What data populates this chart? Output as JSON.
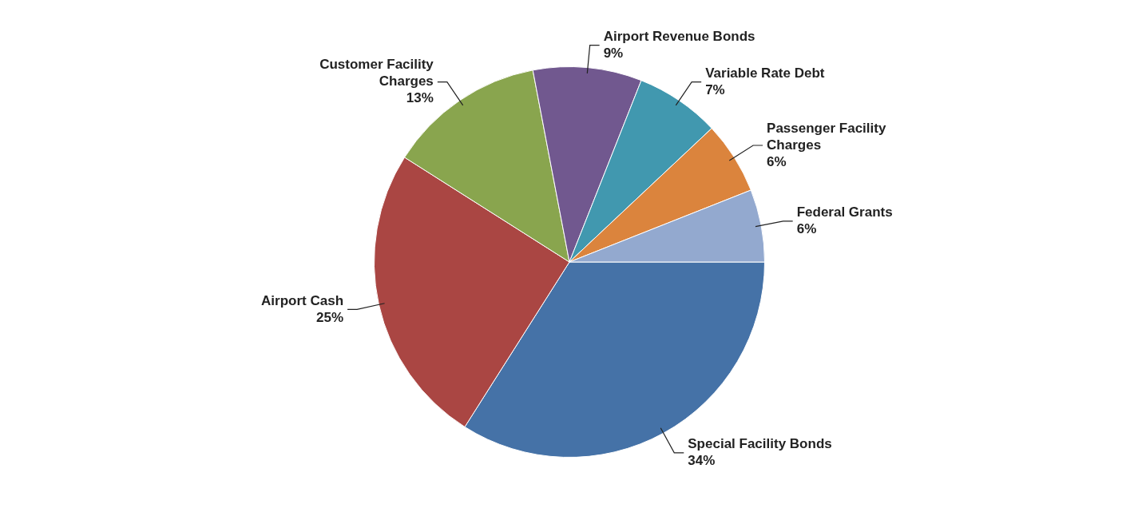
{
  "chart_data": {
    "type": "pie",
    "categories": [
      "Special Facility Bonds",
      "Airport Cash",
      "Customer Facility Charges",
      "Airport Revenue Bonds",
      "Variable Rate Debt",
      "Passenger Facility Charges",
      "Federal Grants"
    ],
    "values": [
      34,
      25,
      13,
      9,
      7,
      6,
      6
    ],
    "colors": [
      "#4572a7",
      "#aa4643",
      "#89a54e",
      "#71588f",
      "#4198af",
      "#db843d",
      "#93a9cf"
    ],
    "value_labels": [
      "34%",
      "25%",
      "13%",
      "9%",
      "7%",
      "6%",
      "6%"
    ],
    "legend": false
  }
}
